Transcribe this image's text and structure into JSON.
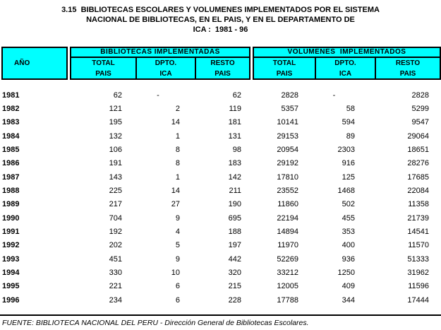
{
  "title": {
    "line1": "3.15  BIBLIOTECAS ESCOLARES Y VOLUMENES IMPLEMENTADOS POR EL SISTEMA",
    "line2": "NACIONAL DE BIBLIOTECAS, EN EL PAIS, Y EN EL DEPARTAMENTO DE",
    "line3": "ICA :  1981 - 96"
  },
  "colors": {
    "header_bg": "#00FFFF",
    "border": "#000000",
    "text": "#000000",
    "page_bg": "#FFFFFF"
  },
  "table": {
    "year_header": "AÑO",
    "groups": [
      {
        "label": "BIBLIOTECAS IMPLEMENTADAS",
        "columns": [
          {
            "line1": "TOTAL",
            "line2": "PAIS"
          },
          {
            "line1": "DPTO.",
            "line2": "ICA"
          },
          {
            "line1": "RESTO",
            "line2": "PAIS"
          }
        ]
      },
      {
        "label": "VOLUMENES  IMPLEMENTADOS",
        "columns": [
          {
            "line1": "TOTAL",
            "line2": "PAIS"
          },
          {
            "line1": "DPTO.",
            "line2": "ICA"
          },
          {
            "line1": "RESTO",
            "line2": "PAIS"
          }
        ]
      }
    ],
    "rows": [
      {
        "year": "1981",
        "values": [
          "62",
          "-",
          "62",
          "2828",
          "-",
          "2828"
        ]
      },
      {
        "year": "1982",
        "values": [
          "121",
          "2",
          "119",
          "5357",
          "58",
          "5299"
        ]
      },
      {
        "year": "1983",
        "values": [
          "195",
          "14",
          "181",
          "10141",
          "594",
          "9547"
        ]
      },
      {
        "year": "1984",
        "values": [
          "132",
          "1",
          "131",
          "29153",
          "89",
          "29064"
        ]
      },
      {
        "year": "1985",
        "values": [
          "106",
          "8",
          "98",
          "20954",
          "2303",
          "18651"
        ]
      },
      {
        "year": "1986",
        "values": [
          "191",
          "8",
          "183",
          "29192",
          "916",
          "28276"
        ]
      },
      {
        "year": "1987",
        "values": [
          "143",
          "1",
          "142",
          "17810",
          "125",
          "17685"
        ]
      },
      {
        "year": "1988",
        "values": [
          "225",
          "14",
          "211",
          "23552",
          "1468",
          "22084"
        ]
      },
      {
        "year": "1989",
        "values": [
          "217",
          "27",
          "190",
          "11860",
          "502",
          "11358"
        ]
      },
      {
        "year": "1990",
        "values": [
          "704",
          "9",
          "695",
          "22194",
          "455",
          "21739"
        ]
      },
      {
        "year": "1991",
        "values": [
          "192",
          "4",
          "188",
          "14894",
          "353",
          "14541"
        ]
      },
      {
        "year": "1992",
        "values": [
          "202",
          "5",
          "197",
          "11970",
          "400",
          "11570"
        ]
      },
      {
        "year": "1993",
        "values": [
          "451",
          "9",
          "442",
          "52269",
          "936",
          "51333"
        ]
      },
      {
        "year": "1994",
        "values": [
          "330",
          "10",
          "320",
          "33212",
          "1250",
          "31962"
        ]
      },
      {
        "year": "1995",
        "values": [
          "221",
          "6",
          "215",
          "12005",
          "409",
          "11596"
        ]
      },
      {
        "year": "1996",
        "values": [
          "234",
          "6",
          "228",
          "17788",
          "344",
          "17444"
        ]
      }
    ]
  },
  "footer": {
    "source": "FUENTE: BIBLIOTECA NACIONAL DEL PERU - Dirección General de Bibliotecas Escolares."
  }
}
